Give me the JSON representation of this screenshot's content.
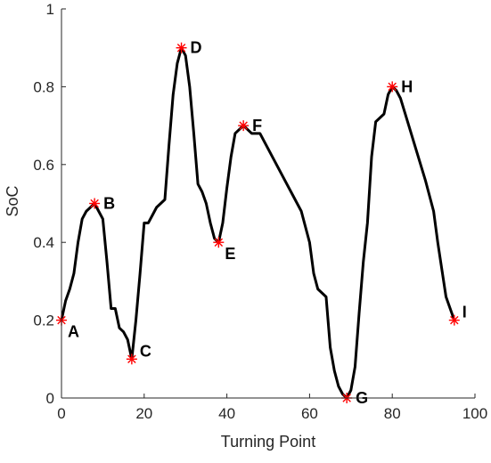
{
  "chart_data": {
    "type": "line",
    "xlabel": "Turning Point",
    "ylabel": "SoC",
    "xlim": [
      0,
      100
    ],
    "ylim": [
      0,
      1
    ],
    "xticks": [
      "0",
      "20",
      "40",
      "60",
      "80",
      "100"
    ],
    "yticks": [
      "0",
      "0.2",
      "0.4",
      "0.6",
      "0.8",
      "1"
    ],
    "grid": false,
    "legend": "none",
    "line_color": "#000000",
    "marker_color": "#ff0000",
    "series": [
      {
        "x": [
          0,
          1,
          2,
          3,
          4,
          5,
          6,
          7,
          8,
          9,
          10,
          11,
          12,
          13,
          14,
          15,
          16,
          17,
          18,
          19,
          20,
          21,
          22,
          23,
          24,
          25,
          26,
          27,
          28,
          29,
          30,
          31,
          32,
          33,
          34,
          35,
          36,
          37,
          38,
          39,
          40,
          41,
          42,
          43,
          44,
          45,
          46,
          47,
          48,
          50,
          52,
          54,
          56,
          58,
          59,
          60,
          61,
          62,
          63,
          64,
          65,
          66,
          67,
          68,
          69,
          70,
          71,
          72,
          73,
          74,
          75,
          76,
          77,
          78,
          79,
          80,
          81,
          82,
          84,
          86,
          88,
          90,
          91,
          92,
          93,
          94,
          95
        ],
        "y": [
          0.2,
          0.25,
          0.28,
          0.32,
          0.4,
          0.46,
          0.48,
          0.49,
          0.5,
          0.48,
          0.46,
          0.35,
          0.23,
          0.23,
          0.18,
          0.17,
          0.15,
          0.1,
          0.2,
          0.32,
          0.45,
          0.45,
          0.47,
          0.49,
          0.5,
          0.51,
          0.65,
          0.78,
          0.86,
          0.9,
          0.88,
          0.8,
          0.68,
          0.55,
          0.53,
          0.5,
          0.45,
          0.41,
          0.4,
          0.45,
          0.54,
          0.62,
          0.68,
          0.69,
          0.7,
          0.69,
          0.68,
          0.68,
          0.68,
          0.64,
          0.6,
          0.56,
          0.52,
          0.48,
          0.44,
          0.4,
          0.32,
          0.28,
          0.27,
          0.26,
          0.13,
          0.07,
          0.03,
          0.01,
          0.0,
          0.02,
          0.08,
          0.22,
          0.35,
          0.45,
          0.62,
          0.71,
          0.72,
          0.73,
          0.78,
          0.8,
          0.79,
          0.77,
          0.7,
          0.63,
          0.56,
          0.48,
          0.4,
          0.33,
          0.26,
          0.23,
          0.2
        ]
      }
    ],
    "annotations": [
      {
        "label": "A",
        "x": 0,
        "y": 0.2,
        "placement": "below-right"
      },
      {
        "label": "B",
        "x": 8,
        "y": 0.5,
        "placement": "right"
      },
      {
        "label": "C",
        "x": 17,
        "y": 0.1,
        "placement": "above-right"
      },
      {
        "label": "D",
        "x": 29,
        "y": 0.9,
        "placement": "right"
      },
      {
        "label": "E",
        "x": 38,
        "y": 0.4,
        "placement": "below-right"
      },
      {
        "label": "F",
        "x": 44,
        "y": 0.7,
        "placement": "right"
      },
      {
        "label": "G",
        "x": 69,
        "y": 0.0,
        "placement": "right"
      },
      {
        "label": "H",
        "x": 80,
        "y": 0.8,
        "placement": "right"
      },
      {
        "label": "I",
        "x": 95,
        "y": 0.2,
        "placement": "above-right"
      }
    ]
  }
}
